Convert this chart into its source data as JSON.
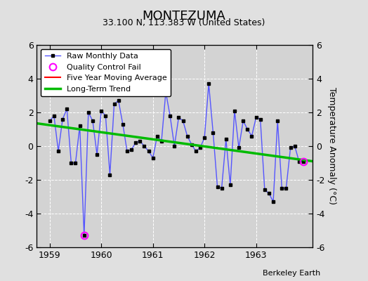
{
  "title": "MONTEZUMA",
  "subtitle": "33.100 N, 113.383 W (United States)",
  "credit": "Berkeley Earth",
  "ylabel": "Temperature Anomaly (°C)",
  "ylim": [
    -6,
    6
  ],
  "xlim": [
    1958.75,
    1964.1
  ],
  "xticks": [
    1959,
    1960,
    1961,
    1962,
    1963
  ],
  "yticks": [
    -6,
    -4,
    -2,
    0,
    2,
    4,
    6
  ],
  "background_color": "#e0e0e0",
  "plot_bg_color": "#d3d3d3",
  "raw_data": {
    "x": [
      1959.0,
      1959.083,
      1959.167,
      1959.25,
      1959.333,
      1959.417,
      1959.5,
      1959.583,
      1959.667,
      1959.75,
      1959.833,
      1959.917,
      1960.0,
      1960.083,
      1960.167,
      1960.25,
      1960.333,
      1960.417,
      1960.5,
      1960.583,
      1960.667,
      1960.75,
      1960.833,
      1960.917,
      1961.0,
      1961.083,
      1961.167,
      1961.25,
      1961.333,
      1961.417,
      1961.5,
      1961.583,
      1961.667,
      1961.75,
      1961.833,
      1961.917,
      1962.0,
      1962.083,
      1962.167,
      1962.25,
      1962.333,
      1962.417,
      1962.5,
      1962.583,
      1962.667,
      1962.75,
      1962.833,
      1962.917,
      1963.0,
      1963.083,
      1963.167,
      1963.25,
      1963.333,
      1963.417,
      1963.5,
      1963.583,
      1963.667,
      1963.75,
      1963.833,
      1963.917
    ],
    "y": [
      1.5,
      1.8,
      -0.3,
      1.6,
      2.2,
      -1.0,
      -1.0,
      1.2,
      -5.3,
      2.0,
      1.5,
      -0.5,
      2.1,
      1.8,
      -1.7,
      2.5,
      2.7,
      1.3,
      -0.3,
      -0.2,
      0.2,
      0.3,
      0.0,
      -0.3,
      -0.7,
      0.6,
      0.3,
      3.2,
      1.8,
      0.0,
      1.7,
      1.5,
      0.6,
      0.1,
      -0.3,
      -0.1,
      0.5,
      3.7,
      0.8,
      -2.4,
      -2.5,
      0.4,
      -2.3,
      2.1,
      -0.1,
      1.5,
      1.0,
      0.6,
      1.7,
      1.6,
      -2.6,
      -2.8,
      -3.3,
      1.5,
      -2.5,
      -2.5,
      -0.1,
      0.0,
      -0.9,
      -0.9
    ]
  },
  "qc_fail_indices": [
    8,
    59
  ],
  "trend_x": [
    1958.75,
    1964.1
  ],
  "trend_y": [
    1.35,
    -0.9
  ],
  "raw_color": "#5555ff",
  "raw_linewidth": 1.0,
  "marker_color": "#000000",
  "marker_size": 3,
  "qc_color": "magenta",
  "trend_color": "#00bb00",
  "trend_linewidth": 2.5,
  "moving_avg_color": "#ff0000",
  "moving_avg_linewidth": 1.5,
  "legend_loc": "upper left",
  "title_fontsize": 13,
  "subtitle_fontsize": 9,
  "tick_fontsize": 9,
  "label_fontsize": 9
}
